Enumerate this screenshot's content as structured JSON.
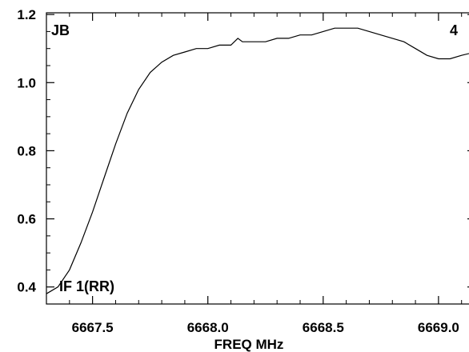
{
  "chart_data": {
    "type": "line",
    "title": "",
    "xlabel": "FREQ MHz",
    "ylabel": "",
    "xlim": [
      6667.3,
      6669.16
    ],
    "ylim": [
      0.35,
      1.205
    ],
    "x_ticks": [
      6667.5,
      6668.0,
      6668.5,
      6669.0
    ],
    "x_tick_labels": [
      "6667.5",
      "6668.0",
      "6668.5",
      "6669.0"
    ],
    "y_ticks": [
      0.4,
      0.6,
      0.8,
      1.0,
      1.2
    ],
    "y_tick_labels": [
      "0.4",
      "0.6",
      "0.8",
      "1.0",
      "1.2"
    ],
    "grid": false,
    "annotations": {
      "top_left": "JB",
      "top_right": "4",
      "bottom_left": "IF 1(RR)"
    },
    "series": [
      {
        "color": "#000000",
        "x": [
          6667.3,
          6667.35,
          6667.4,
          6667.45,
          6667.5,
          6667.55,
          6667.6,
          6667.65,
          6667.7,
          6667.75,
          6667.8,
          6667.85,
          6667.9,
          6667.95,
          6668.0,
          6668.05,
          6668.1,
          6668.13,
          6668.15,
          6668.2,
          6668.25,
          6668.3,
          6668.35,
          6668.4,
          6668.45,
          6668.5,
          6668.55,
          6668.6,
          6668.65,
          6668.7,
          6668.75,
          6668.8,
          6668.85,
          6668.9,
          6668.95,
          6669.0,
          6669.05,
          6669.1,
          6669.16
        ],
        "values": [
          0.38,
          0.4,
          0.45,
          0.53,
          0.62,
          0.72,
          0.82,
          0.91,
          0.98,
          1.03,
          1.06,
          1.08,
          1.09,
          1.1,
          1.1,
          1.11,
          1.11,
          1.13,
          1.12,
          1.12,
          1.12,
          1.13,
          1.13,
          1.14,
          1.14,
          1.15,
          1.16,
          1.16,
          1.16,
          1.15,
          1.14,
          1.13,
          1.12,
          1.1,
          1.08,
          1.07,
          1.07,
          1.08,
          1.09
        ]
      }
    ]
  }
}
